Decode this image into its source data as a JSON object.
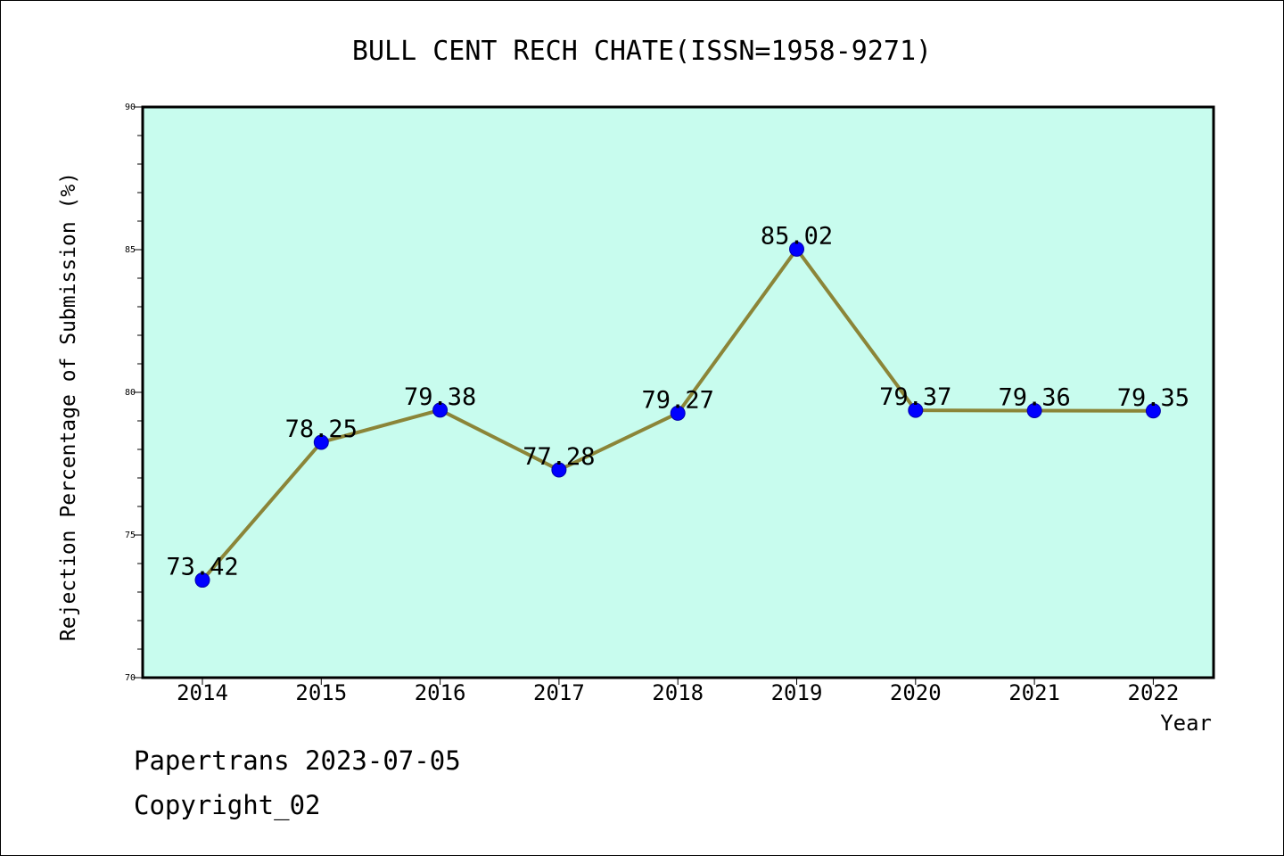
{
  "chart_data": {
    "type": "line",
    "title": "BULL CENT RECH CHATE(ISSN=1958-9271)",
    "xlabel": "Year",
    "ylabel": "Rejection Percentage of Submission (%)",
    "categories": [
      "2014",
      "2015",
      "2016",
      "2017",
      "2018",
      "2019",
      "2020",
      "2021",
      "2022"
    ],
    "values": [
      73.42,
      78.25,
      79.38,
      77.28,
      79.27,
      85.02,
      79.37,
      79.36,
      79.35
    ],
    "data_labels": [
      "73.42",
      "78.25",
      "79.38",
      "77.28",
      "79.27",
      "85.02",
      "79.37",
      "79.36",
      "79.35"
    ],
    "ylim": [
      70,
      90
    ],
    "yticks": [
      "70",
      "75",
      "80",
      "85",
      "90"
    ],
    "grid": false,
    "colors": {
      "plot_background": "#c8fcee",
      "line": "#8b8538",
      "marker": "#0000ff"
    }
  },
  "footer": {
    "line1": "Papertrans 2023-07-05",
    "line2": "Copyright_02"
  }
}
